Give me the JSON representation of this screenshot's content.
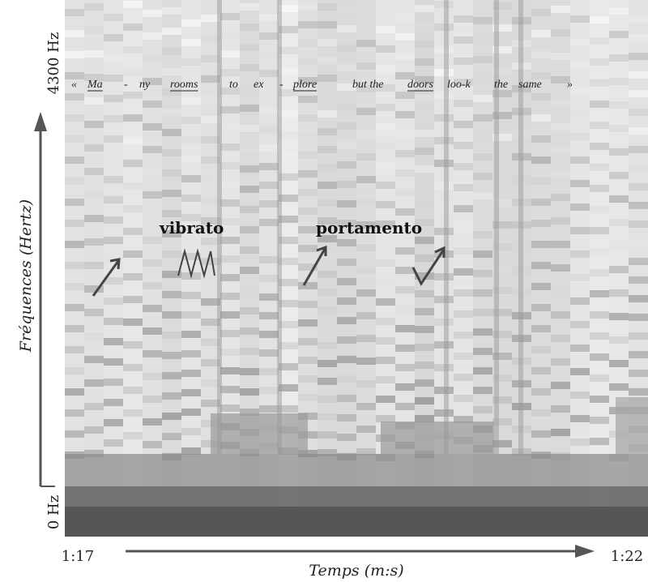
{
  "axes": {
    "y_top_label": "4300 Hz",
    "y_bottom_label": "0 Hz",
    "y_title": "Fréquences (Hertz)",
    "x_start_label": "1:17",
    "x_end_label": "1:22",
    "x_title": "Temps (m:s)"
  },
  "lyrics": [
    {
      "text": "«",
      "underlined": false
    },
    {
      "text": "Ma",
      "underlined": true
    },
    {
      "text": "-",
      "underlined": false
    },
    {
      "text": "ny",
      "underlined": false
    },
    {
      "text": "rooms",
      "underlined": true
    },
    {
      "text": "to",
      "underlined": false
    },
    {
      "text": "ex",
      "underlined": false
    },
    {
      "text": "-",
      "underlined": false
    },
    {
      "text": "plore",
      "underlined": true
    },
    {
      "text": "but the",
      "underlined": false
    },
    {
      "text": "doors",
      "underlined": true
    },
    {
      "text": "loo-k",
      "underlined": false
    },
    {
      "text": "the",
      "underlined": false
    },
    {
      "text": "same",
      "underlined": false
    },
    {
      "text": "»",
      "underlined": false
    }
  ],
  "annotations": {
    "vibrato": "vibrato",
    "portamento": "portamento"
  }
}
